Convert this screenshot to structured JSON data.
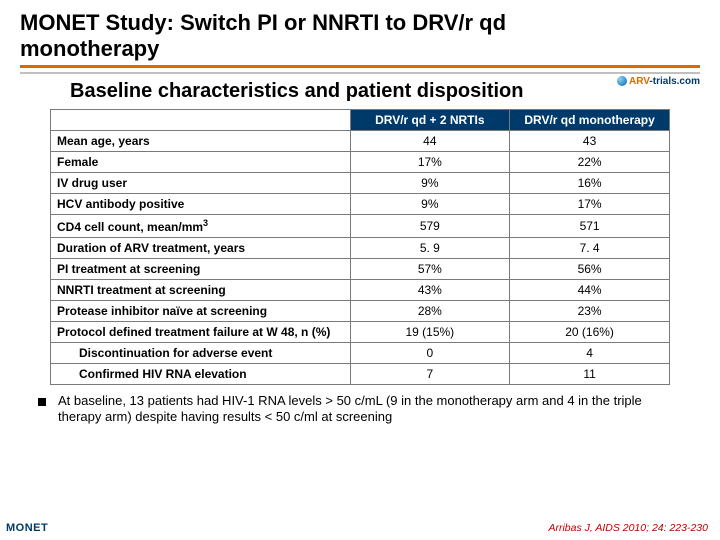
{
  "colors": {
    "title_underline": "#d96c00",
    "header_bg": "#003a6a",
    "header_text": "#ffffff",
    "citation": "#c00000",
    "divider": "#c0c0c0",
    "border": "#7a7a7a"
  },
  "title_line1": "MONET Study: Switch PI or NNRTI to DRV/r qd",
  "title_line2": "monotherapy",
  "logo_arv": "ARV",
  "logo_trials": "-trials.com",
  "subtitle": "Baseline characteristics and patient disposition",
  "table": {
    "col1": "DRV/r qd + 2 NRTIs",
    "col2": "DRV/r qd monotherapy",
    "rows": [
      {
        "label": "Mean age, years",
        "v1": "44",
        "v2": "43",
        "indent": false
      },
      {
        "label": "Female",
        "v1": "17%",
        "v2": "22%",
        "indent": false
      },
      {
        "label": "IV drug user",
        "v1": "9%",
        "v2": "16%",
        "indent": false
      },
      {
        "label": "HCV antibody positive",
        "v1": "9%",
        "v2": "17%",
        "indent": false
      },
      {
        "label": "CD4 cell count, mean/mm",
        "sup": "3",
        "v1": "579",
        "v2": "571",
        "indent": false
      },
      {
        "label": "Duration of ARV treatment, years",
        "v1": "5. 9",
        "v2": "7. 4",
        "indent": false
      },
      {
        "label": "PI treatment at screening",
        "v1": "57%",
        "v2": "56%",
        "indent": false
      },
      {
        "label": "NNRTI treatment at screening",
        "v1": "43%",
        "v2": "44%",
        "indent": false
      },
      {
        "label": "Protease inhibitor naïve at screening",
        "v1": "28%",
        "v2": "23%",
        "indent": false
      },
      {
        "label": "Protocol defined treatment failure at W 48, n (%)",
        "v1": "19 (15%)",
        "v2": "20 (16%)",
        "indent": false
      },
      {
        "label": "Discontinuation for adverse event",
        "v1": "0",
        "v2": "4",
        "indent": true
      },
      {
        "label": "Confirmed HIV RNA elevation",
        "v1": "7",
        "v2": "11",
        "indent": true
      }
    ]
  },
  "bullet": "At baseline, 13 patients had HIV-1 RNA levels > 50 c/mL (9 in the monotherapy arm and 4 in the triple therapy arm) despite having results < 50 c/ml at screening",
  "study_tag": "MONET",
  "citation": "Arribas J, AIDS 2010; 24: 223-230"
}
